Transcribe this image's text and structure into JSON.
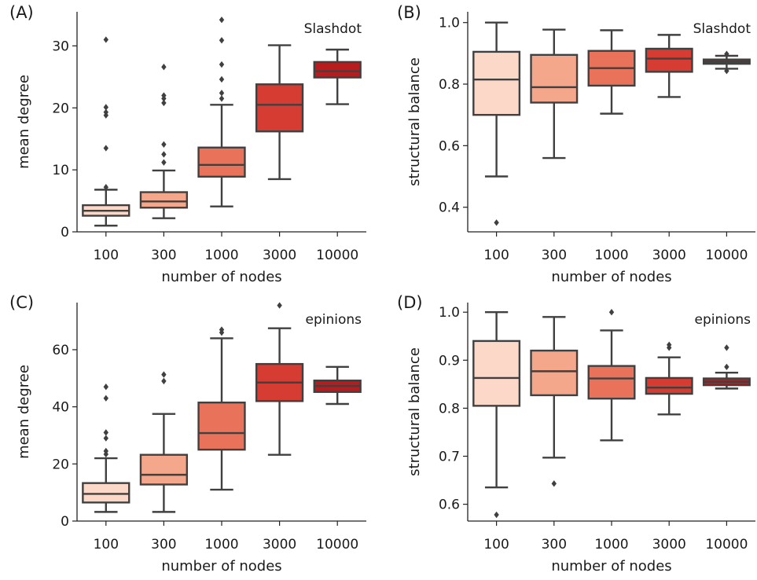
{
  "chart_data": [
    {
      "type": "box",
      "panel_label": "(A)",
      "annotation": "Slashdot",
      "xlabel": "number of nodes",
      "ylabel": "mean degree",
      "categories": [
        "100",
        "300",
        "1000",
        "3000",
        "10000"
      ],
      "ylim": [
        0,
        35.5
      ],
      "yticks": [
        0,
        10,
        20,
        30
      ],
      "boxes": [
        {
          "min": 1.0,
          "q1": 2.6,
          "median": 3.4,
          "q3": 4.3,
          "max": 6.8,
          "outliers": [
            7.2,
            13.5,
            18.8,
            19.3,
            20.1,
            31.0
          ]
        },
        {
          "min": 2.2,
          "q1": 3.9,
          "median": 4.9,
          "q3": 6.4,
          "max": 9.9,
          "outliers": [
            11.2,
            12.5,
            14.1,
            20.8,
            21.5,
            22.0,
            26.6
          ]
        },
        {
          "min": 4.1,
          "q1": 8.9,
          "median": 10.8,
          "q3": 13.6,
          "max": 20.5,
          "outliers": [
            21.5,
            22.4,
            24.6,
            27.0,
            30.9,
            34.2
          ]
        },
        {
          "min": 8.5,
          "q1": 16.2,
          "median": 20.5,
          "q3": 23.8,
          "max": 30.1,
          "outliers": []
        },
        {
          "min": 20.6,
          "q1": 24.9,
          "median": 25.9,
          "q3": 27.4,
          "max": 29.4,
          "outliers": []
        }
      ]
    },
    {
      "type": "box",
      "panel_label": "(B)",
      "annotation": "Slashdot",
      "xlabel": "number of nodes",
      "ylabel": "structural balance",
      "categories": [
        "100",
        "300",
        "1000",
        "3000",
        "10000"
      ],
      "ylim": [
        0.32,
        1.035
      ],
      "yticks": [
        0.4,
        0.6,
        0.8,
        1.0
      ],
      "boxes": [
        {
          "min": 0.5,
          "q1": 0.7,
          "median": 0.815,
          "q3": 0.905,
          "max": 1.0,
          "outliers": [
            0.35
          ]
        },
        {
          "min": 0.56,
          "q1": 0.74,
          "median": 0.79,
          "q3": 0.895,
          "max": 0.977,
          "outliers": []
        },
        {
          "min": 0.704,
          "q1": 0.795,
          "median": 0.852,
          "q3": 0.908,
          "max": 0.975,
          "outliers": []
        },
        {
          "min": 0.758,
          "q1": 0.84,
          "median": 0.883,
          "q3": 0.915,
          "max": 0.96,
          "outliers": []
        },
        {
          "min": 0.85,
          "q1": 0.866,
          "median": 0.873,
          "q3": 0.88,
          "max": 0.892,
          "outliers": [
            0.843,
            0.898
          ]
        }
      ]
    },
    {
      "type": "box",
      "panel_label": "(C)",
      "annotation": "epinions",
      "xlabel": "number of nodes",
      "ylabel": "mean degree",
      "categories": [
        "100",
        "300",
        "1000",
        "3000",
        "10000"
      ],
      "ylim": [
        0,
        76.5
      ],
      "yticks": [
        0,
        20,
        40,
        60
      ],
      "boxes": [
        {
          "min": 3.2,
          "q1": 6.5,
          "median": 9.5,
          "q3": 13.3,
          "max": 22.0,
          "outliers": [
            23.4,
            24.5,
            29.0,
            31.0,
            43.0,
            47.0
          ]
        },
        {
          "min": 3.2,
          "q1": 12.8,
          "median": 16.2,
          "q3": 23.2,
          "max": 37.5,
          "outliers": [
            49.0,
            51.3
          ]
        },
        {
          "min": 11.0,
          "q1": 25.0,
          "median": 30.8,
          "q3": 41.5,
          "max": 64.0,
          "outliers": [
            66.0,
            67.0
          ]
        },
        {
          "min": 23.2,
          "q1": 42.0,
          "median": 48.5,
          "q3": 55.0,
          "max": 67.5,
          "outliers": [
            75.5
          ]
        },
        {
          "min": 41.0,
          "q1": 45.2,
          "median": 47.3,
          "q3": 49.2,
          "max": 54.0,
          "outliers": []
        }
      ]
    },
    {
      "type": "box",
      "panel_label": "(D)",
      "annotation": "epinions",
      "xlabel": "number of nodes",
      "ylabel": "structural balance",
      "categories": [
        "100",
        "300",
        "1000",
        "3000",
        "10000"
      ],
      "ylim": [
        0.565,
        1.02
      ],
      "yticks": [
        0.6,
        0.7,
        0.8,
        0.9,
        1.0
      ],
      "boxes": [
        {
          "min": 0.635,
          "q1": 0.805,
          "median": 0.863,
          "q3": 0.94,
          "max": 1.0,
          "outliers": [
            0.578
          ]
        },
        {
          "min": 0.697,
          "q1": 0.827,
          "median": 0.877,
          "q3": 0.92,
          "max": 0.99,
          "outliers": [
            0.643
          ]
        },
        {
          "min": 0.733,
          "q1": 0.82,
          "median": 0.862,
          "q3": 0.888,
          "max": 0.962,
          "outliers": [
            1.0
          ]
        },
        {
          "min": 0.787,
          "q1": 0.83,
          "median": 0.843,
          "q3": 0.863,
          "max": 0.906,
          "outliers": [
            0.926,
            0.932
          ]
        },
        {
          "min": 0.841,
          "q1": 0.848,
          "median": 0.855,
          "q3": 0.862,
          "max": 0.874,
          "outliers": [
            0.886,
            0.926
          ]
        }
      ]
    }
  ],
  "colors": [
    "#fcd8c9",
    "#f4a78a",
    "#e8735a",
    "#d63c32",
    "#b71d1f"
  ],
  "line_color": "#404040",
  "axis_color": "#222222"
}
